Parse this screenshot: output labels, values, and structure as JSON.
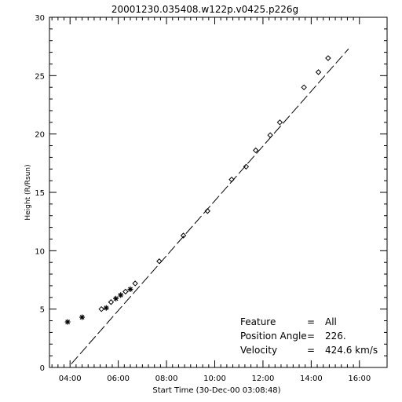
{
  "chart_data": {
    "type": "scatter",
    "title": "20001230.035408.w122p.v0425.p226g",
    "xlabel": "Start Time (30-Dec-00 03:08:48)",
    "ylabel": "Height (R/Rsun)",
    "xlim": [
      "03:08:48",
      "17:08:48"
    ],
    "ylim": [
      0,
      30
    ],
    "x_ticks": [
      "04:00",
      "06:00",
      "08:00",
      "10:00",
      "12:00",
      "14:00",
      "16:00"
    ],
    "y_ticks": [
      0,
      5,
      10,
      15,
      20,
      25,
      30
    ],
    "grid": false,
    "fit_line": {
      "style": "long-dash",
      "x": [
        "04:03",
        "15:33"
      ],
      "y": [
        0.3,
        27.3
      ]
    },
    "series": [
      {
        "marker": "asterisk",
        "points": [
          {
            "x": "03:54",
            "y": 3.9
          },
          {
            "x": "04:30",
            "y": 4.3
          },
          {
            "x": "05:30",
            "y": 5.1
          },
          {
            "x": "05:54",
            "y": 5.9
          },
          {
            "x": "06:06",
            "y": 6.2
          },
          {
            "x": "06:30",
            "y": 6.7
          }
        ]
      },
      {
        "marker": "diamond",
        "points": [
          {
            "x": "05:18",
            "y": 5.0
          },
          {
            "x": "05:42",
            "y": 5.6
          },
          {
            "x": "06:18",
            "y": 6.5
          },
          {
            "x": "06:42",
            "y": 7.2
          },
          {
            "x": "07:42",
            "y": 9.1
          },
          {
            "x": "08:42",
            "y": 11.3
          },
          {
            "x": "09:42",
            "y": 13.4
          },
          {
            "x": "10:42",
            "y": 16.1
          },
          {
            "x": "11:18",
            "y": 17.2
          },
          {
            "x": "11:42",
            "y": 18.6
          },
          {
            "x": "12:18",
            "y": 19.9
          },
          {
            "x": "12:42",
            "y": 21.0
          },
          {
            "x": "13:42",
            "y": 24.0
          },
          {
            "x": "14:18",
            "y": 25.3
          },
          {
            "x": "14:42",
            "y": 26.5
          }
        ]
      }
    ],
    "annotations": [
      {
        "label": "Feature",
        "eq": "=",
        "value": "All"
      },
      {
        "label": "Position Angle",
        "eq": "=",
        "value": "226."
      },
      {
        "label": "Velocity",
        "eq": "=",
        "value": "424.6 km/s"
      }
    ]
  }
}
